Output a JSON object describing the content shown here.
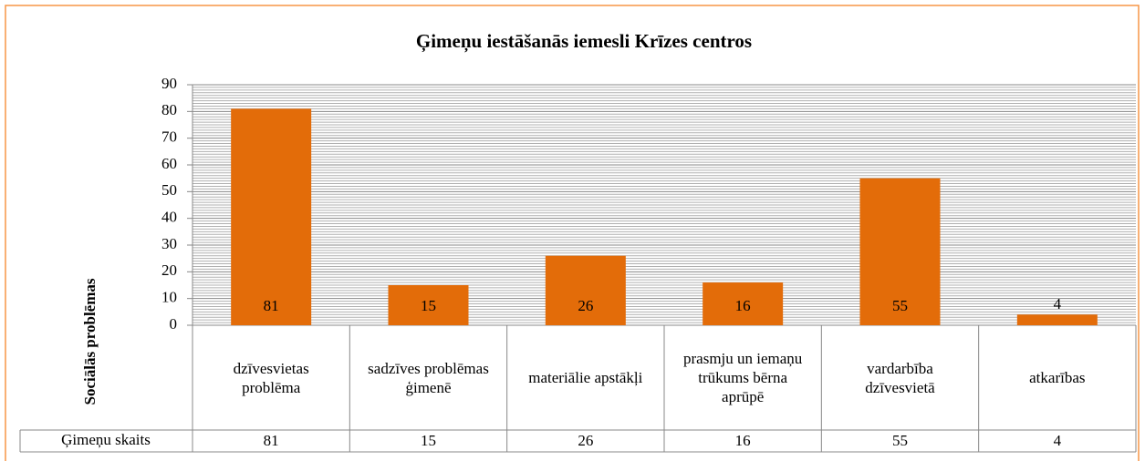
{
  "chart_data": {
    "type": "bar",
    "title": "Ģimeņu iestāšanās iemesli Krīzes centros",
    "y_label": "Sociālās problēmas",
    "table_row_label": "Ģimeņu skaits",
    "categories": [
      "dzīvesvietas problēma",
      "sadzīves problēmas ģimenē",
      "materiālie apstākļi",
      "prasmju un iemaņu trūkums bērna aprūpē",
      "vardarbība dzīvesvietā",
      "atkarības"
    ],
    "values": [
      81,
      15,
      26,
      16,
      55,
      4
    ],
    "color": "#e36c09",
    "ylim": [
      0,
      90
    ],
    "yticks": [
      0,
      10,
      20,
      30,
      40,
      50,
      60,
      70,
      80,
      90
    ],
    "grid": true
  }
}
